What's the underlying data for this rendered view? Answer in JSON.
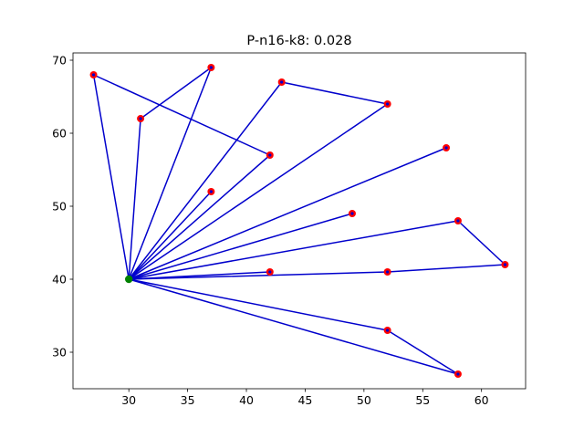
{
  "chart_data": {
    "type": "scatter",
    "title": "P-n16-k8: 0.028",
    "xlabel": "",
    "ylabel": "",
    "xlim": [
      25.25,
      63.75
    ],
    "ylim": [
      25.0,
      71.0
    ],
    "xticks": [
      30,
      35,
      40,
      45,
      50,
      55,
      60
    ],
    "yticks": [
      30,
      40,
      50,
      60,
      70
    ],
    "grid": false,
    "legend": "none",
    "depot": {
      "x": 30,
      "y": 40
    },
    "customers": [
      {
        "x": 27,
        "y": 68
      },
      {
        "x": 37,
        "y": 69
      },
      {
        "x": 31,
        "y": 62
      },
      {
        "x": 43,
        "y": 67
      },
      {
        "x": 52,
        "y": 64
      },
      {
        "x": 42,
        "y": 57
      },
      {
        "x": 37,
        "y": 52
      },
      {
        "x": 57,
        "y": 58
      },
      {
        "x": 49,
        "y": 49
      },
      {
        "x": 58,
        "y": 48
      },
      {
        "x": 62,
        "y": 42
      },
      {
        "x": 42,
        "y": 41
      },
      {
        "x": 52,
        "y": 41
      },
      {
        "x": 52,
        "y": 33
      },
      {
        "x": 58,
        "y": 27
      }
    ],
    "routes": [
      [
        [
          30,
          40
        ],
        [
          27,
          68
        ],
        [
          42,
          57
        ],
        [
          30,
          40
        ]
      ],
      [
        [
          30,
          40
        ],
        [
          31,
          62
        ],
        [
          37,
          69
        ],
        [
          30,
          40
        ]
      ],
      [
        [
          30,
          40
        ],
        [
          43,
          67
        ],
        [
          52,
          64
        ],
        [
          30,
          40
        ]
      ],
      [
        [
          30,
          40
        ],
        [
          37,
          52
        ],
        [
          30,
          40
        ]
      ],
      [
        [
          30,
          40
        ],
        [
          57,
          58
        ],
        [
          30,
          40
        ]
      ],
      [
        [
          30,
          40
        ],
        [
          49,
          49
        ],
        [
          30,
          40
        ]
      ],
      [
        [
          30,
          40
        ],
        [
          58,
          48
        ],
        [
          62,
          42
        ],
        [
          52,
          41
        ],
        [
          30,
          40
        ]
      ],
      [
        [
          30,
          40
        ],
        [
          42,
          41
        ],
        [
          30,
          40
        ]
      ],
      [
        [
          30,
          40
        ],
        [
          52,
          33
        ],
        [
          58,
          27
        ],
        [
          30,
          40
        ]
      ]
    ],
    "colors": {
      "route": "#0000cc",
      "customer": "#ff0000",
      "depot": "#008000",
      "axis": "#000000"
    }
  }
}
